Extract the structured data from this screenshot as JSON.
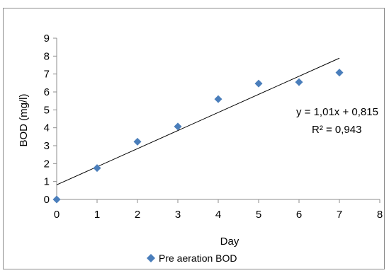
{
  "chart_data": {
    "type": "scatter",
    "title": "",
    "xlabel": "Day",
    "ylabel": "BOD (mg/l)",
    "xlim": [
      0,
      8
    ],
    "ylim": [
      0,
      9
    ],
    "x_ticks": [
      "0",
      "1",
      "2",
      "3",
      "4",
      "5",
      "6",
      "7",
      "8"
    ],
    "y_ticks": [
      "0",
      "1",
      "2",
      "3",
      "4",
      "5",
      "6",
      "7",
      "8",
      "9"
    ],
    "grid": false,
    "legend_position": "bottom",
    "series": [
      {
        "name": "Pre aeration BOD",
        "color": "#4a7ebb",
        "marker": "diamond",
        "x": [
          0,
          1,
          2,
          3,
          4,
          5,
          6,
          7
        ],
        "y": [
          0,
          1.75,
          3.22,
          4.07,
          5.6,
          6.47,
          6.55,
          7.08
        ]
      }
    ],
    "trendline": {
      "type": "linear",
      "slope": 1.01,
      "intercept": 0.815,
      "x_range": [
        0,
        7
      ],
      "color": "#000000"
    },
    "annotations": {
      "equation": "y = 1,01x + 0,815",
      "r_squared": "R² = 0,943"
    }
  }
}
